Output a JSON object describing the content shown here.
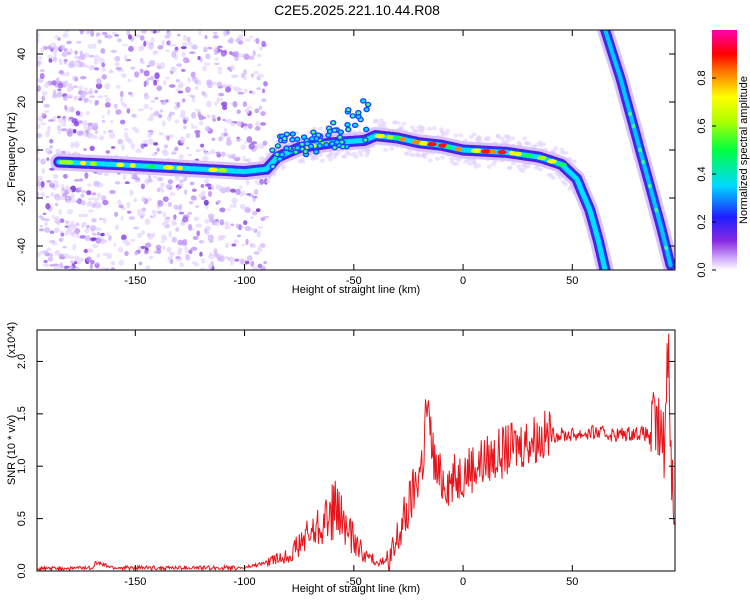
{
  "title": "C2E5.2025.221.10.44.R08",
  "chart_data": [
    {
      "type": "heatmap",
      "xlabel": "Height of straight line (km)",
      "ylabel": "Frequency (Hz)",
      "xlim": [
        -195,
        97
      ],
      "ylim": [
        -50,
        50
      ],
      "x_ticks": [
        -150,
        -100,
        -50,
        0,
        50
      ],
      "y_ticks": [
        -40,
        -20,
        0,
        20,
        40
      ],
      "colorbar": {
        "label": "Normalized spectral amplitude",
        "range": [
          0,
          1
        ],
        "ticks": [
          0.0,
          0.2,
          0.4,
          0.6,
          0.8
        ],
        "colormap": "rainbow (white-violet-blue-cyan-green-yellow-red-magenta)"
      },
      "main_track": [
        {
          "x": -185,
          "y": -5
        },
        {
          "x": -160,
          "y": -6
        },
        {
          "x": -140,
          "y": -7
        },
        {
          "x": -120,
          "y": -8
        },
        {
          "x": -100,
          "y": -9
        },
        {
          "x": -90,
          "y": -8
        },
        {
          "x": -85,
          "y": -3
        },
        {
          "x": -75,
          "y": 1
        },
        {
          "x": -60,
          "y": 3
        },
        {
          "x": -45,
          "y": 4
        },
        {
          "x": -40,
          "y": 6
        },
        {
          "x": -30,
          "y": 5
        },
        {
          "x": -20,
          "y": 3
        },
        {
          "x": -10,
          "y": 2
        },
        {
          "x": 0,
          "y": 0
        },
        {
          "x": 20,
          "y": -1
        },
        {
          "x": 35,
          "y": -3
        },
        {
          "x": 45,
          "y": -6
        },
        {
          "x": 52,
          "y": -12
        },
        {
          "x": 58,
          "y": -25
        },
        {
          "x": 62,
          "y": -38
        },
        {
          "x": 65,
          "y": -50
        }
      ],
      "secondary_track": [
        {
          "x": 65,
          "y": 50
        },
        {
          "x": 72,
          "y": 30
        },
        {
          "x": 78,
          "y": 10
        },
        {
          "x": 84,
          "y": -10
        },
        {
          "x": 90,
          "y": -30
        },
        {
          "x": 95,
          "y": -48
        }
      ]
    },
    {
      "type": "line",
      "xlabel": "Height of straight line (km)",
      "ylabel": "SNR (10 * v/v)",
      "y_multiplier": "(x10^4)",
      "xlim": [
        -195,
        97
      ],
      "ylim": [
        0,
        2.3
      ],
      "x_ticks": [
        -150,
        -100,
        -50,
        0,
        50
      ],
      "y_ticks": [
        0.0,
        0.5,
        1.0,
        1.5,
        2.0
      ],
      "series": [
        {
          "color": "#e8141b",
          "x": [
            -195,
            -170,
            -168,
            -160,
            -130,
            -100,
            -90,
            -80,
            -75,
            -70,
            -65,
            -60,
            -58,
            -55,
            -50,
            -45,
            -40,
            -35,
            -32,
            -30,
            -25,
            -22,
            -18,
            -17,
            -12,
            -5,
            0,
            10,
            20,
            30,
            40,
            50,
            60,
            70,
            80,
            85,
            88,
            92,
            94,
            95,
            97
          ],
          "y": [
            0.02,
            0.03,
            0.08,
            0.03,
            0.03,
            0.03,
            0.08,
            0.15,
            0.25,
            0.35,
            0.45,
            0.55,
            0.6,
            0.45,
            0.3,
            0.15,
            0.1,
            0.08,
            0.12,
            0.3,
            0.6,
            0.8,
            1.1,
            1.6,
            0.9,
            0.85,
            0.95,
            1.05,
            1.15,
            1.25,
            1.3,
            1.3,
            1.32,
            1.3,
            1.32,
            1.3,
            1.4,
            1.2,
            2.25,
            1.3,
            0.2
          ]
        }
      ]
    }
  ]
}
